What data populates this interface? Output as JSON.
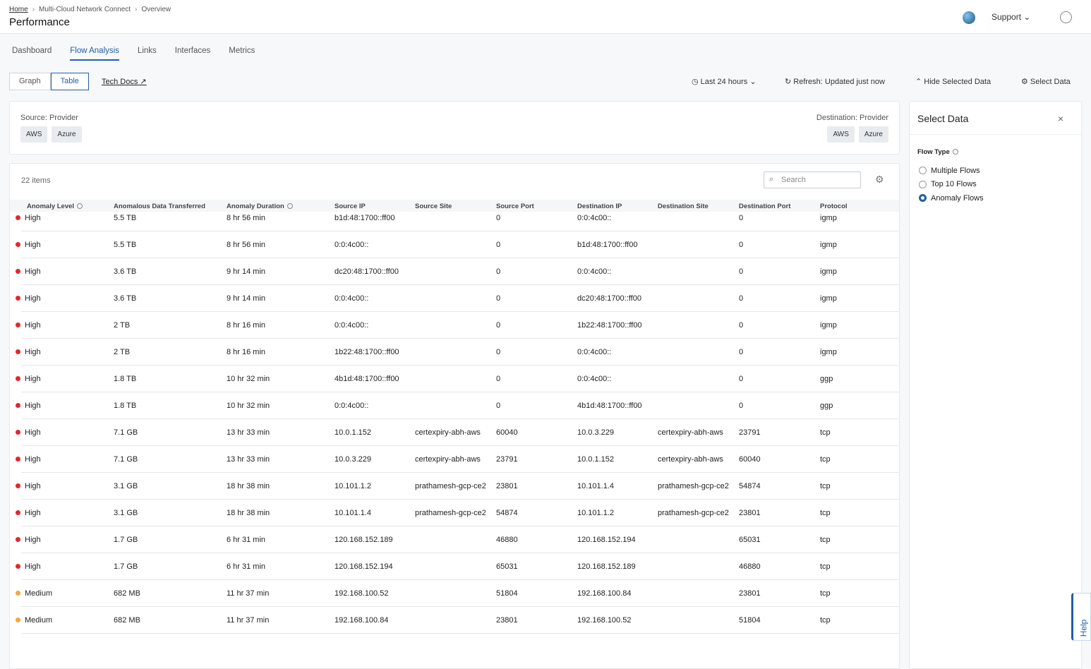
{
  "header": {
    "breadcrumb": [
      "Home",
      "Multi-Cloud Network Connect",
      "Overview"
    ],
    "title": "Performance",
    "support": "Support"
  },
  "tabs": [
    "Dashboard",
    "Flow Analysis",
    "Links",
    "Interfaces",
    "Metrics"
  ],
  "view_toggle": [
    "Graph",
    "Table"
  ],
  "tech_docs": "Tech Docs",
  "toolbar": [
    "Last 24 hours",
    "Refresh: Updated just now",
    "Hide Selected Data",
    "Select Data"
  ],
  "filters": {
    "source_label": "Source: Provider",
    "source": [
      "AWS",
      "Azure"
    ],
    "destination_label": "Destination: Provider",
    "destination": [
      "AWS",
      "Azure"
    ]
  },
  "table": {
    "count": "22 items",
    "search_placeholder": "Search",
    "level_colors": {
      "High": "#e5262e",
      "Medium": "#f2a93b"
    },
    "columns": [
      "Anomaly Level",
      "Anomalous Data Transferred",
      "Anomaly Duration",
      "Source IP",
      "Source Site",
      "Source Port",
      "Destination IP",
      "Destination Site",
      "Destination Port",
      "Protocol"
    ],
    "rows": [
      [
        "High",
        "5.5 TB",
        "8 hr 56 min",
        "b1d:48:1700::ff00",
        null,
        0,
        "0:0:4c00::",
        null,
        0,
        "igmp"
      ],
      [
        "High",
        "5.5 TB",
        "8 hr 56 min",
        "0:0:4c00::",
        null,
        0,
        "b1d:48:1700::ff00",
        null,
        0,
        "igmp"
      ],
      [
        "High",
        "3.6 TB",
        "9 hr 14 min",
        "dc20:48:1700::ff00",
        null,
        0,
        "0:0:4c00::",
        null,
        0,
        "igmp"
      ],
      [
        "High",
        "3.6 TB",
        "9 hr 14 min",
        "0:0:4c00::",
        null,
        0,
        "dc20:48:1700::ff00",
        null,
        0,
        "igmp"
      ],
      [
        "High",
        "2 TB",
        "8 hr 16 min",
        "0:0:4c00::",
        null,
        0,
        "1b22:48:1700::ff00",
        null,
        0,
        "igmp"
      ],
      [
        "High",
        "2 TB",
        "8 hr 16 min",
        "1b22:48:1700::ff00",
        null,
        0,
        "0:0:4c00::",
        null,
        0,
        "igmp"
      ],
      [
        "High",
        "1.8 TB",
        "10 hr 32 min",
        "4b1d:48:1700::ff00",
        null,
        0,
        "0:0:4c00::",
        null,
        0,
        "ggp"
      ],
      [
        "High",
        "1.8 TB",
        "10 hr 32 min",
        "0:0:4c00::",
        null,
        0,
        "4b1d:48:1700::ff00",
        null,
        0,
        "ggp"
      ],
      [
        "High",
        "7.1 GB",
        "13 hr 33 min",
        "10.0.1.152",
        "certexpiry-abh-aws",
        60040,
        "10.0.3.229",
        "certexpiry-abh-aws",
        23791,
        "tcp"
      ],
      [
        "High",
        "7.1 GB",
        "13 hr 33 min",
        "10.0.3.229",
        "certexpiry-abh-aws",
        23791,
        "10.0.1.152",
        "certexpiry-abh-aws",
        60040,
        "tcp"
      ],
      [
        "High",
        "3.1 GB",
        "18 hr 38 min",
        "10.101.1.2",
        "prathamesh-gcp-ce2",
        23801,
        "10.101.1.4",
        "prathamesh-gcp-ce2",
        54874,
        "tcp"
      ],
      [
        "High",
        "3.1 GB",
        "18 hr 38 min",
        "10.101.1.4",
        "prathamesh-gcp-ce2",
        54874,
        "10.101.1.2",
        "prathamesh-gcp-ce2",
        23801,
        "tcp"
      ],
      [
        "High",
        "1.7 GB",
        "6 hr 31 min",
        "120.168.152.189",
        null,
        46880,
        "120.168.152.194",
        null,
        65031,
        "tcp"
      ],
      [
        "High",
        "1.7 GB",
        "6 hr 31 min",
        "120.168.152.194",
        null,
        65031,
        "120.168.152.189",
        null,
        46880,
        "tcp"
      ],
      [
        "Medium",
        "682 MB",
        "11 hr 37 min",
        "192.168.100.52",
        null,
        51804,
        "192.168.100.84",
        null,
        23801,
        "tcp"
      ],
      [
        "Medium",
        "682 MB",
        "11 hr 37 min",
        "192.168.100.84",
        null,
        23801,
        "192.168.100.52",
        null,
        51804,
        "tcp"
      ]
    ]
  },
  "panel": {
    "title": "Select Data",
    "flow_type_label": "Flow Type",
    "options": [
      "Multiple Flows",
      "Top 10 Flows",
      "Anomaly Flows"
    ]
  },
  "help": "Help"
}
